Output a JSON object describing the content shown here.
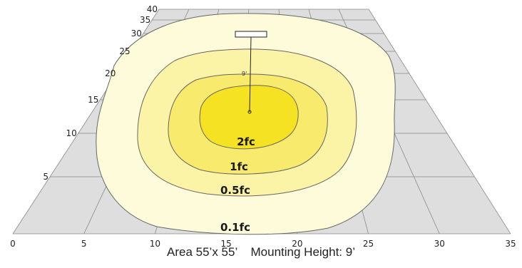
{
  "x_ticks": [
    "0",
    "5",
    "10",
    "15",
    "20",
    "25",
    "30",
    "35"
  ],
  "y_ticks": [
    "5",
    "10",
    "15",
    "20",
    "25",
    "30",
    "35",
    "40"
  ],
  "contours": [
    {
      "label": "0.1fc",
      "color": "#fdfbd9"
    },
    {
      "label": "0.5fc",
      "color": "#fbf3a6"
    },
    {
      "label": "1fc",
      "color": "#f8ea6c"
    },
    {
      "label": "2fc",
      "color": "#f4e223"
    }
  ],
  "mounting_height_label": "9'",
  "caption": "Area 55’x 55’    Mounting Height: 9’",
  "colors": {
    "grid_fill": "#dedede",
    "grid_line": "#8a8a8a",
    "contour_stroke": "#666666",
    "fixture_line": "#222222"
  }
}
